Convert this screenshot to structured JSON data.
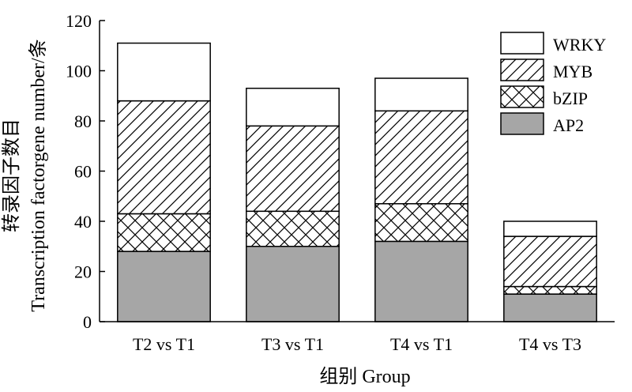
{
  "chart_data": {
    "type": "bar",
    "stacked": true,
    "categories": [
      "T2 vs T1",
      "T3 vs T1",
      "T4 vs T1",
      "T4 vs T3"
    ],
    "series": [
      {
        "name": "AP2",
        "values": [
          28,
          30,
          32,
          11
        ],
        "color": "#a6a6a6",
        "pattern": "solid"
      },
      {
        "name": "bZIP",
        "values": [
          15,
          14,
          15,
          3
        ],
        "color": "#ffffff",
        "pattern": "crosshatch"
      },
      {
        "name": "MYB",
        "values": [
          45,
          34,
          37,
          20
        ],
        "color": "#ffffff",
        "pattern": "diagonal"
      },
      {
        "name": "WRKY",
        "values": [
          23,
          15,
          13,
          6
        ],
        "color": "#ffffff",
        "pattern": "none"
      }
    ],
    "legend_order": [
      "WRKY",
      "MYB",
      "bZIP",
      "AP2"
    ],
    "legend_position": "top-right",
    "xlabel": "组别 Group",
    "ylabel_line1": "转录因子数目",
    "ylabel_line2": "Transcription factorgene number/条",
    "ylim": [
      0,
      120
    ],
    "yticks": [
      0,
      20,
      40,
      60,
      80,
      100,
      120
    ],
    "grid": false
  }
}
